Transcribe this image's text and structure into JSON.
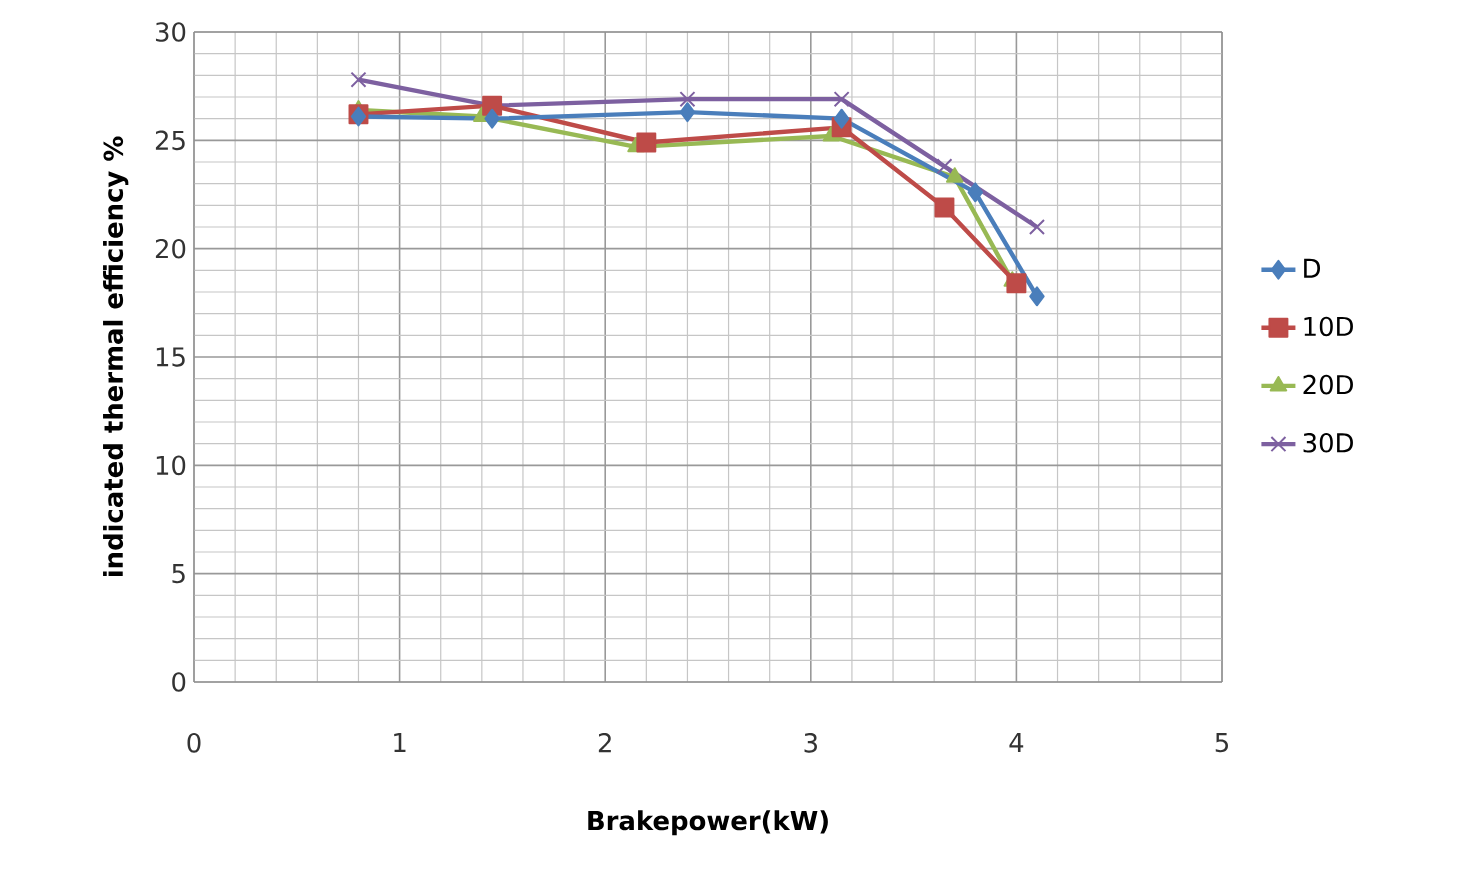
{
  "chart_data": {
    "type": "line",
    "xlabel": "Brakepower(kW)",
    "ylabel": "indicated thermal efficiency  %",
    "xlim": [
      0,
      5
    ],
    "xticks": [
      0,
      1,
      2,
      3,
      4,
      5
    ],
    "ylim": [
      0,
      30
    ],
    "yticks": [
      0,
      5,
      10,
      15,
      20,
      25,
      30
    ],
    "grid": true,
    "legend": "right",
    "series": [
      {
        "name": "D",
        "color": "#4a7ebb",
        "marker": "diamond",
        "x": [
          0.8,
          1.45,
          2.4,
          3.15,
          3.8,
          4.1
        ],
        "values": [
          26.1,
          26.0,
          26.3,
          26.0,
          22.6,
          17.8
        ]
      },
      {
        "name": "10D",
        "color": "#be4b48",
        "marker": "square",
        "x": [
          0.8,
          1.45,
          2.2,
          3.15,
          3.65,
          4.0
        ],
        "values": [
          26.2,
          26.6,
          24.9,
          25.6,
          21.9,
          18.4
        ]
      },
      {
        "name": "20D",
        "color": "#98b954",
        "marker": "triangle",
        "x": [
          0.8,
          1.4,
          2.15,
          3.1,
          3.7,
          3.98
        ],
        "values": [
          26.4,
          26.1,
          24.7,
          25.2,
          23.3,
          18.5
        ]
      },
      {
        "name": "30D",
        "color": "#7d60a0",
        "marker": "cross",
        "x": [
          0.8,
          1.45,
          2.4,
          3.15,
          3.65,
          4.1
        ],
        "values": [
          27.8,
          26.6,
          26.9,
          26.9,
          23.8,
          21.0
        ]
      }
    ]
  }
}
